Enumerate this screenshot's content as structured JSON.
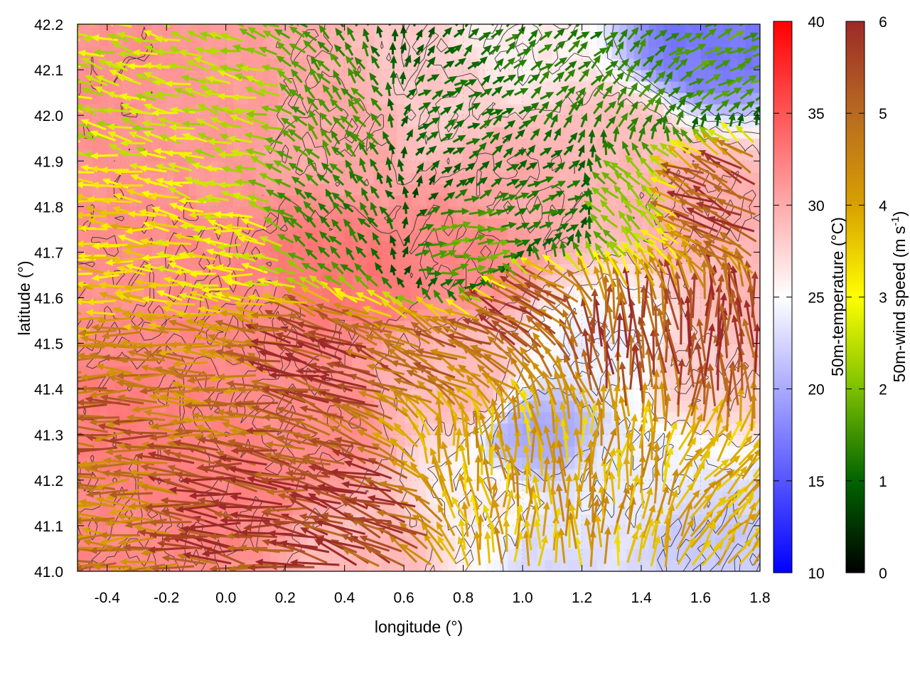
{
  "chart_data": {
    "type": "heatmap",
    "xlabel": "longitude (°)",
    "ylabel": "latitude (°)",
    "xlim": [
      -0.5,
      1.8
    ],
    "ylim": [
      41.0,
      42.2
    ],
    "xticks": [
      "-0.4",
      "-0.2",
      "0.0",
      "0.2",
      "0.4",
      "0.6",
      "0.8",
      "1.0",
      "1.2",
      "1.4",
      "1.6",
      "1.8"
    ],
    "yticks": [
      "41.0",
      "41.1",
      "41.2",
      "41.3",
      "41.4",
      "41.5",
      "41.6",
      "41.7",
      "41.8",
      "41.9",
      "42.0",
      "42.1",
      "42.2"
    ],
    "grid": true,
    "temperature": {
      "label": "50m-temperature (°C)",
      "range": [
        10,
        40
      ],
      "ticks": [
        "10",
        "15",
        "20",
        "25",
        "30",
        "35",
        "40"
      ],
      "colors": [
        "#0000ff",
        "#ffffff",
        "#ff0000"
      ],
      "field_points": [
        {
          "lon": -0.4,
          "lat": 42.1,
          "t": 31.5
        },
        {
          "lon": -0.4,
          "lat": 41.7,
          "t": 31.5
        },
        {
          "lon": -0.4,
          "lat": 41.3,
          "t": 32.5
        },
        {
          "lon": -0.4,
          "lat": 41.05,
          "t": 32
        },
        {
          "lon": 0.0,
          "lat": 42.05,
          "t": 31
        },
        {
          "lon": 0.0,
          "lat": 41.6,
          "t": 32
        },
        {
          "lon": 0.0,
          "lat": 41.2,
          "t": 32.5
        },
        {
          "lon": 0.4,
          "lat": 42.0,
          "t": 30
        },
        {
          "lon": 0.4,
          "lat": 41.65,
          "t": 33
        },
        {
          "lon": 0.3,
          "lat": 41.3,
          "t": 32
        },
        {
          "lon": 0.5,
          "lat": 41.05,
          "t": 29
        },
        {
          "lon": 0.7,
          "lat": 42.05,
          "t": 28
        },
        {
          "lon": 0.8,
          "lat": 41.7,
          "t": 32
        },
        {
          "lon": 0.8,
          "lat": 41.4,
          "t": 29
        },
        {
          "lon": 0.85,
          "lat": 41.15,
          "t": 26
        },
        {
          "lon": 1.0,
          "lat": 42.15,
          "t": 26
        },
        {
          "lon": 1.0,
          "lat": 41.85,
          "t": 30
        },
        {
          "lon": 1.05,
          "lat": 41.3,
          "t": 20
        },
        {
          "lon": 1.1,
          "lat": 41.05,
          "t": 23
        },
        {
          "lon": 1.3,
          "lat": 41.95,
          "t": 29
        },
        {
          "lon": 1.3,
          "lat": 41.5,
          "t": 24
        },
        {
          "lon": 1.35,
          "lat": 41.2,
          "t": 24
        },
        {
          "lon": 1.6,
          "lat": 42.15,
          "t": 17
        },
        {
          "lon": 1.6,
          "lat": 41.8,
          "t": 30
        },
        {
          "lon": 1.6,
          "lat": 41.45,
          "t": 28
        },
        {
          "lon": 1.65,
          "lat": 41.05,
          "t": 22
        },
        {
          "lon": 1.75,
          "lat": 41.6,
          "t": 29
        }
      ]
    },
    "wind": {
      "label_prefix": "50m-wind speed (m s",
      "label_exp": "-1",
      "label_suffix": ")",
      "range": [
        0,
        6
      ],
      "ticks": [
        "0",
        "1",
        "2",
        "3",
        "4",
        "5",
        "6"
      ],
      "colors": [
        "#000000",
        "#006400",
        "#7cc000",
        "#ffff00",
        "#d8a000",
        "#b86a20",
        "#9c2a28"
      ],
      "field_points": [
        {
          "lon": -0.4,
          "lat": 42.05,
          "u": -2.5,
          "v": 0.6
        },
        {
          "lon": -0.4,
          "lat": 41.7,
          "u": -3.5,
          "v": 0.3
        },
        {
          "lon": -0.4,
          "lat": 41.35,
          "u": -5.0,
          "v": 0.1
        },
        {
          "lon": -0.4,
          "lat": 41.1,
          "u": -4.5,
          "v": 0.0
        },
        {
          "lon": 0.0,
          "lat": 42.0,
          "u": -2.5,
          "v": 0.5
        },
        {
          "lon": 0.0,
          "lat": 41.7,
          "u": -3.0,
          "v": 0.4
        },
        {
          "lon": 0.0,
          "lat": 41.4,
          "u": -4.5,
          "v": 0.3
        },
        {
          "lon": 0.1,
          "lat": 41.15,
          "u": -5.8,
          "v": 0.6
        },
        {
          "lon": 0.4,
          "lat": 42.0,
          "u": -1.0,
          "v": 1.2
        },
        {
          "lon": 0.4,
          "lat": 41.75,
          "u": -0.8,
          "v": 1.0
        },
        {
          "lon": 0.35,
          "lat": 41.45,
          "u": -5.5,
          "v": 1.5
        },
        {
          "lon": 0.5,
          "lat": 41.15,
          "u": -5.5,
          "v": 1.8
        },
        {
          "lon": 0.75,
          "lat": 42.0,
          "u": 1.0,
          "v": 0.6
        },
        {
          "lon": 0.8,
          "lat": 41.7,
          "u": 1.8,
          "v": 0.2
        },
        {
          "lon": 0.75,
          "lat": 41.45,
          "u": -4.5,
          "v": 2.0
        },
        {
          "lon": 0.85,
          "lat": 41.25,
          "u": -0.5,
          "v": 4.0
        },
        {
          "lon": 1.1,
          "lat": 42.1,
          "u": 1.0,
          "v": 0.8
        },
        {
          "lon": 1.1,
          "lat": 41.8,
          "u": 1.2,
          "v": 0.5
        },
        {
          "lon": 1.05,
          "lat": 41.55,
          "u": -5.0,
          "v": 2.2
        },
        {
          "lon": 1.05,
          "lat": 41.1,
          "u": 0.0,
          "v": 4.0
        },
        {
          "lon": 1.35,
          "lat": 42.05,
          "u": 0.8,
          "v": 1.2
        },
        {
          "lon": 1.35,
          "lat": 41.8,
          "u": -1.5,
          "v": 1.5
        },
        {
          "lon": 1.3,
          "lat": 41.5,
          "u": -0.5,
          "v": 5.5
        },
        {
          "lon": 1.35,
          "lat": 41.15,
          "u": 0.5,
          "v": 4.0
        },
        {
          "lon": 1.65,
          "lat": 42.1,
          "u": 1.5,
          "v": 0.6
        },
        {
          "lon": 1.7,
          "lat": 41.8,
          "u": -5.0,
          "v": 2.2
        },
        {
          "lon": 1.65,
          "lat": 41.5,
          "u": -0.3,
          "v": 5.8
        },
        {
          "lon": 1.65,
          "lat": 41.15,
          "u": 2.5,
          "v": 3.0
        }
      ]
    }
  }
}
